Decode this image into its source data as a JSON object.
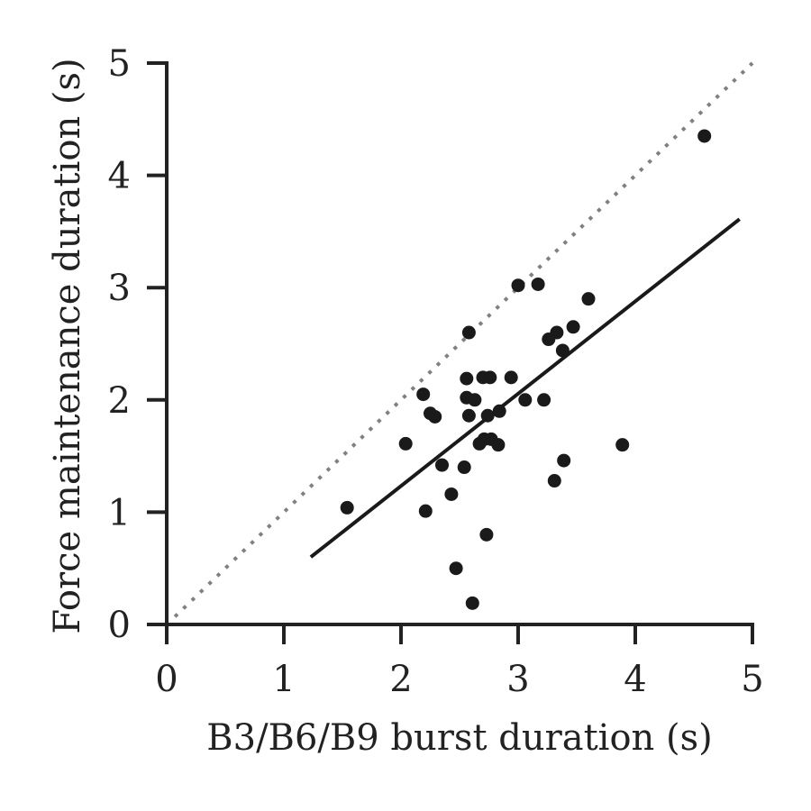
{
  "chart_data": {
    "type": "scatter",
    "title": "",
    "xlabel": "B3/B6/B9 burst duration (s)",
    "ylabel": "Force maintenance duration (s)",
    "xlim": [
      0,
      5
    ],
    "ylim": [
      0,
      5
    ],
    "xticks": [
      "0",
      "1",
      "2",
      "3",
      "4",
      "5"
    ],
    "yticks": [
      "0",
      "1",
      "2",
      "3",
      "4",
      "5"
    ],
    "grid": false,
    "legend": "none",
    "points": [
      {
        "x": 1.54,
        "y": 1.04
      },
      {
        "x": 2.04,
        "y": 1.61
      },
      {
        "x": 2.19,
        "y": 2.05
      },
      {
        "x": 2.21,
        "y": 1.01
      },
      {
        "x": 2.25,
        "y": 1.88
      },
      {
        "x": 2.29,
        "y": 1.85
      },
      {
        "x": 2.35,
        "y": 1.42
      },
      {
        "x": 2.43,
        "y": 1.16
      },
      {
        "x": 2.47,
        "y": 0.5
      },
      {
        "x": 2.54,
        "y": 1.4
      },
      {
        "x": 2.56,
        "y": 2.19
      },
      {
        "x": 2.56,
        "y": 2.02
      },
      {
        "x": 2.58,
        "y": 1.86
      },
      {
        "x": 2.58,
        "y": 2.6
      },
      {
        "x": 2.61,
        "y": 0.19
      },
      {
        "x": 2.63,
        "y": 2.0
      },
      {
        "x": 2.67,
        "y": 1.61
      },
      {
        "x": 2.7,
        "y": 2.2
      },
      {
        "x": 2.71,
        "y": 1.65
      },
      {
        "x": 2.73,
        "y": 0.8
      },
      {
        "x": 2.74,
        "y": 1.86
      },
      {
        "x": 2.76,
        "y": 2.2
      },
      {
        "x": 2.77,
        "y": 1.65
      },
      {
        "x": 2.83,
        "y": 1.6
      },
      {
        "x": 2.84,
        "y": 1.9
      },
      {
        "x": 2.94,
        "y": 2.2
      },
      {
        "x": 3.0,
        "y": 3.02
      },
      {
        "x": 3.06,
        "y": 2.0
      },
      {
        "x": 3.17,
        "y": 3.03
      },
      {
        "x": 3.22,
        "y": 2.0
      },
      {
        "x": 3.26,
        "y": 2.54
      },
      {
        "x": 3.31,
        "y": 1.28
      },
      {
        "x": 3.33,
        "y": 2.6
      },
      {
        "x": 3.38,
        "y": 2.44
      },
      {
        "x": 3.39,
        "y": 1.46
      },
      {
        "x": 3.47,
        "y": 2.65
      },
      {
        "x": 3.6,
        "y": 2.9
      },
      {
        "x": 3.89,
        "y": 1.6
      },
      {
        "x": 4.59,
        "y": 4.35
      }
    ],
    "fit_line": {
      "x": [
        1.23,
        4.89
      ],
      "y": [
        0.6,
        3.61
      ]
    },
    "identity_line": {
      "x": [
        0.07,
        5.0
      ],
      "y": [
        0.07,
        5.0
      ]
    }
  },
  "colors": {
    "points": "#1a1a1a",
    "fit_line": "#1a1a1a",
    "identity_line": "#808080",
    "axes": "#222222"
  }
}
